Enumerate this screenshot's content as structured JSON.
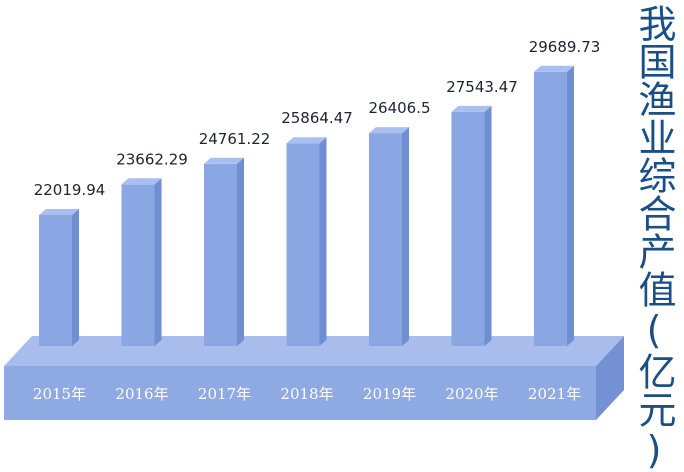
{
  "chart_data": {
    "type": "bar",
    "title": "我国渔业综合产值(亿元)",
    "categories": [
      "2015年",
      "2016年",
      "2017年",
      "2018年",
      "2019年",
      "2020年",
      "2021年"
    ],
    "values": [
      22019.94,
      23662.29,
      24761.22,
      25864.47,
      26406.5,
      27543.47,
      29689.73
    ],
    "value_labels": [
      "22019.94",
      "23662.29",
      "24761.22",
      "25864.47",
      "26406.5",
      "27543.47",
      "29689.73"
    ],
    "xlabel": "",
    "ylabel": "",
    "grid": false,
    "legend": "none",
    "style": "3d-columns-on-platform"
  },
  "colors": {
    "bar_front": "#8aa7e3",
    "bar_side": "#6f8fd2",
    "bar_top": "#a9bff0",
    "platform_top": "#a8bdec",
    "platform_front": "#8fa9e2",
    "platform_side": "#7491d3",
    "label_text": "#1f2330",
    "title_text": "#1a4f86"
  }
}
